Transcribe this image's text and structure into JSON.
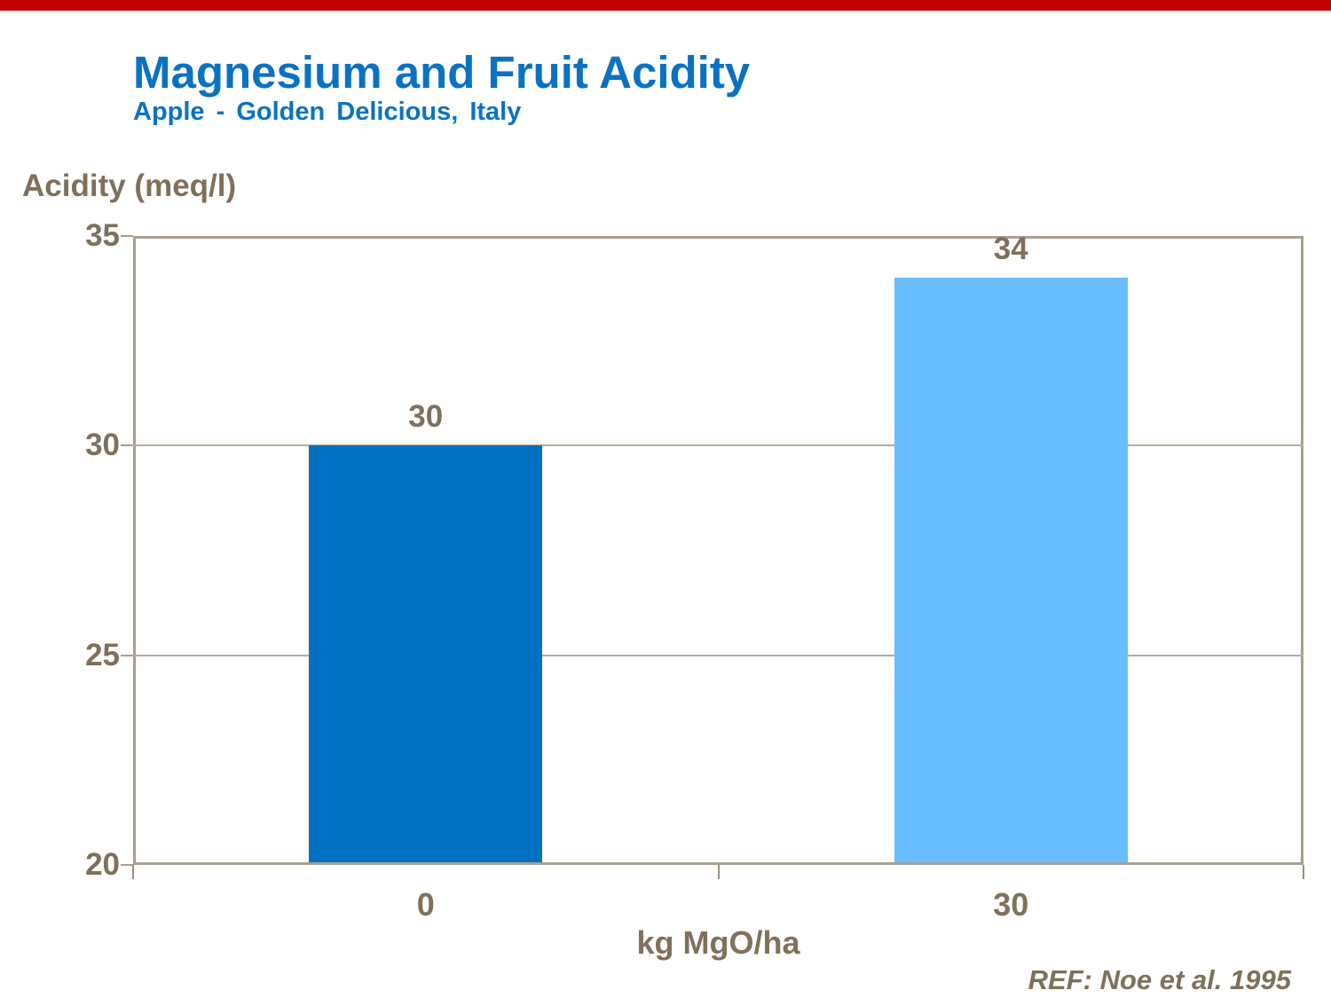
{
  "page": {
    "accent_bar_color": "#c00000",
    "title": "Magnesium and Fruit Acidity",
    "subtitle": "Apple - Golden Delicious, Italy",
    "title_color": "#0b72c2",
    "reference": "REF: Noe et al. 1995",
    "text_color": "#7f705b"
  },
  "chart_data": {
    "type": "bar",
    "title": "Magnesium and Fruit Acidity",
    "subtitle": "Apple - Golden Delicious, Italy",
    "ylabel": "Acidity (meq/l)",
    "xlabel": "kg MgO/ha",
    "categories": [
      "0",
      "30"
    ],
    "values": [
      30,
      34
    ],
    "bar_labels": [
      "30",
      "34"
    ],
    "bar_colors": [
      "#0070c0",
      "#69beff"
    ],
    "ylim": [
      20,
      35
    ],
    "yticks": [
      35,
      30,
      25,
      20
    ],
    "grid": "horizontal gridlines at interior ticks (25, 30)",
    "legend_position": "none",
    "axis_color": "#a99e90",
    "gridline_color": "#b6ac9d",
    "text_color": "#7f705b",
    "reference": "REF: Noe et al. 1995"
  }
}
